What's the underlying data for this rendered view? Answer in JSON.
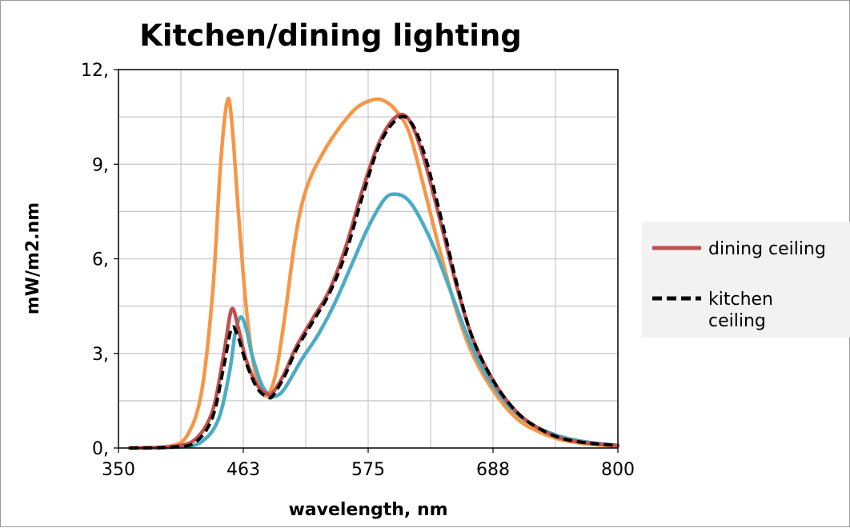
{
  "chart_data": {
    "type": "line",
    "title": "Kitchen/dining lighting",
    "xlabel": "wavelength, nm",
    "ylabel": "mW/m2.nm",
    "xlim": [
      350,
      800
    ],
    "ylim": [
      0,
      12
    ],
    "x_ticks": [
      "350",
      "463",
      "575",
      "688",
      "800"
    ],
    "y_ticks": [
      "0,",
      "3,",
      "6,",
      "9,",
      "12,"
    ],
    "grid": true,
    "legend_position": "right",
    "series": [
      {
        "name": "dining ceiling",
        "color": "#c0504d",
        "style": "solid",
        "x": [
          360,
          400,
          420,
          435,
          445,
          452,
          458,
          465,
          475,
          485,
          490,
          500,
          510,
          525,
          540,
          555,
          570,
          585,
          600,
          612,
          625,
          640,
          655,
          670,
          690,
          710,
          730,
          750,
          775,
          800
        ],
        "y": [
          0,
          0.05,
          0.3,
          1.2,
          3.0,
          4.4,
          3.8,
          2.8,
          2.0,
          1.7,
          1.8,
          2.4,
          3.2,
          4.1,
          5.0,
          6.4,
          8.2,
          9.7,
          10.5,
          10.4,
          9.2,
          7.2,
          5.1,
          3.4,
          2.0,
          1.1,
          0.6,
          0.3,
          0.15,
          0.08
        ]
      },
      {
        "name": "kitchen ceiling",
        "color": "#000000",
        "style": "dashed",
        "x": [
          360,
          400,
          420,
          435,
          445,
          452,
          458,
          465,
          475,
          485,
          490,
          500,
          510,
          525,
          540,
          555,
          570,
          585,
          600,
          612,
          625,
          640,
          655,
          670,
          690,
          710,
          730,
          750,
          775,
          800
        ],
        "y": [
          0,
          0.03,
          0.2,
          1.0,
          2.6,
          3.8,
          3.5,
          2.7,
          1.9,
          1.6,
          1.7,
          2.3,
          3.1,
          4.0,
          4.9,
          6.2,
          8.0,
          9.6,
          10.4,
          10.4,
          9.4,
          7.4,
          5.2,
          3.4,
          2.0,
          1.1,
          0.6,
          0.3,
          0.15,
          0.08
        ]
      },
      {
        "color": "#f79646",
        "style": "solid",
        "x": [
          360,
          395,
          412,
          425,
          435,
          442,
          448,
          452,
          458,
          465,
          472,
          480,
          485,
          492,
          500,
          510,
          520,
          535,
          550,
          565,
          580,
          590,
          600,
          612,
          625,
          640,
          655,
          670,
          690,
          710,
          730,
          750,
          775,
          800
        ],
        "y": [
          0,
          0.05,
          0.4,
          1.8,
          5.0,
          9.0,
          11.0,
          10.4,
          7.5,
          4.5,
          2.6,
          1.8,
          1.7,
          2.4,
          4.2,
          6.8,
          8.3,
          9.4,
          10.2,
          10.8,
          11.05,
          11.0,
          10.7,
          10.0,
          8.3,
          6.2,
          4.3,
          2.9,
          1.7,
          0.9,
          0.5,
          0.25,
          0.12,
          0.06
        ]
      },
      {
        "color": "#4bacc6",
        "style": "solid",
        "x": [
          360,
          405,
          425,
          440,
          450,
          455,
          460,
          465,
          470,
          478,
          485,
          492,
          500,
          515,
          530,
          545,
          560,
          575,
          590,
          600,
          610,
          620,
          635,
          650,
          665,
          680,
          700,
          720,
          745,
          770,
          800
        ],
        "y": [
          0,
          0.03,
          0.2,
          0.9,
          2.4,
          3.6,
          4.15,
          3.8,
          3.0,
          2.1,
          1.7,
          1.65,
          1.9,
          2.8,
          3.6,
          4.6,
          5.8,
          7.0,
          7.9,
          8.05,
          7.9,
          7.4,
          6.3,
          4.9,
          3.5,
          2.4,
          1.4,
          0.8,
          0.4,
          0.2,
          0.08
        ]
      }
    ]
  }
}
